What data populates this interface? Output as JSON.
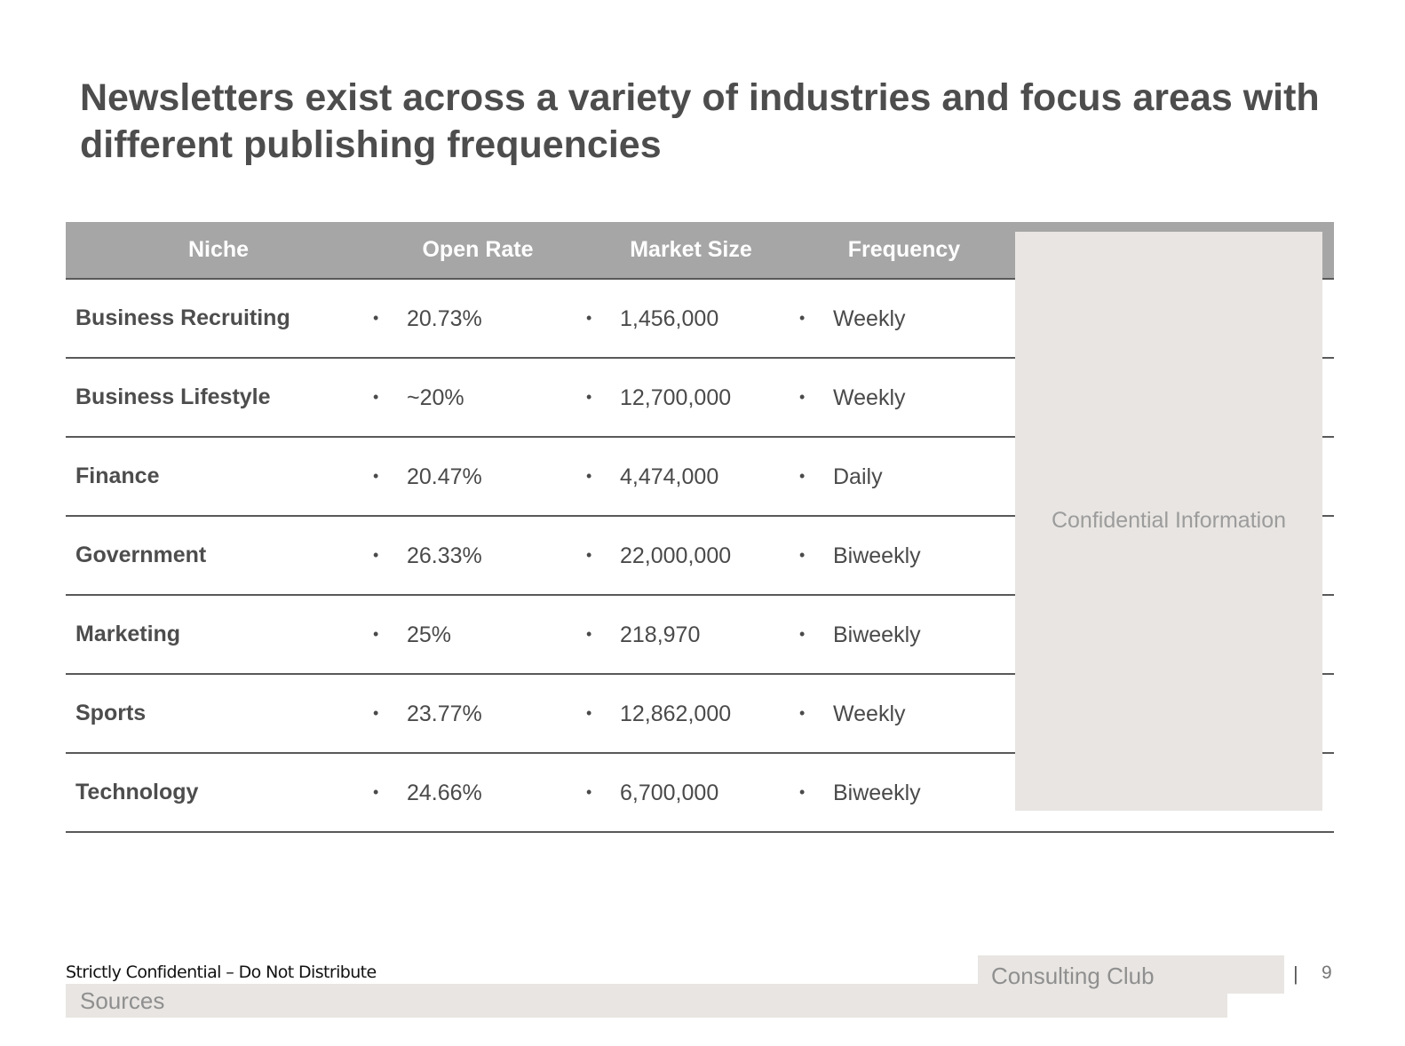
{
  "title": "Newsletters exist across a variety of industries and focus areas with different publishing frequencies",
  "table": {
    "headers": {
      "niche": "Niche",
      "open_rate": "Open Rate",
      "market_size": "Market Size",
      "frequency": "Frequency"
    },
    "bullet": "•",
    "rows": [
      {
        "niche": "Business Recruiting",
        "open_rate": "20.73%",
        "market_size": "1,456,000",
        "frequency": "Weekly"
      },
      {
        "niche": "Business Lifestyle",
        "open_rate": "~20%",
        "market_size": "12,700,000",
        "frequency": "Weekly"
      },
      {
        "niche": "Finance",
        "open_rate": "20.47%",
        "market_size": "4,474,000",
        "frequency": "Daily"
      },
      {
        "niche": "Government",
        "open_rate": "26.33%",
        "market_size": "22,000,000",
        "frequency": "Biweekly"
      },
      {
        "niche": "Marketing",
        "open_rate": "25%",
        "market_size": "218,970",
        "frequency": "Biweekly"
      },
      {
        "niche": "Sports",
        "open_rate": "23.77%",
        "market_size": "12,862,000",
        "frequency": "Weekly"
      },
      {
        "niche": "Technology",
        "open_rate": "24.66%",
        "market_size": "6,700,000",
        "frequency": "Biweekly"
      }
    ]
  },
  "confidential_box": {
    "label": "Confidential Information"
  },
  "footer": {
    "confidential_notice": "Strictly Confidential – Do Not Distribute",
    "sources_label": "Sources",
    "brand": "Consulting Club",
    "separator": "|",
    "page_number": "9"
  },
  "colors": {
    "header_bg": "#a6a6a6",
    "rule": "#595959",
    "placeholder_bg": "#e8e5e2",
    "placeholder_text": "#9c9c9c",
    "body_text": "#4a4a4a"
  }
}
